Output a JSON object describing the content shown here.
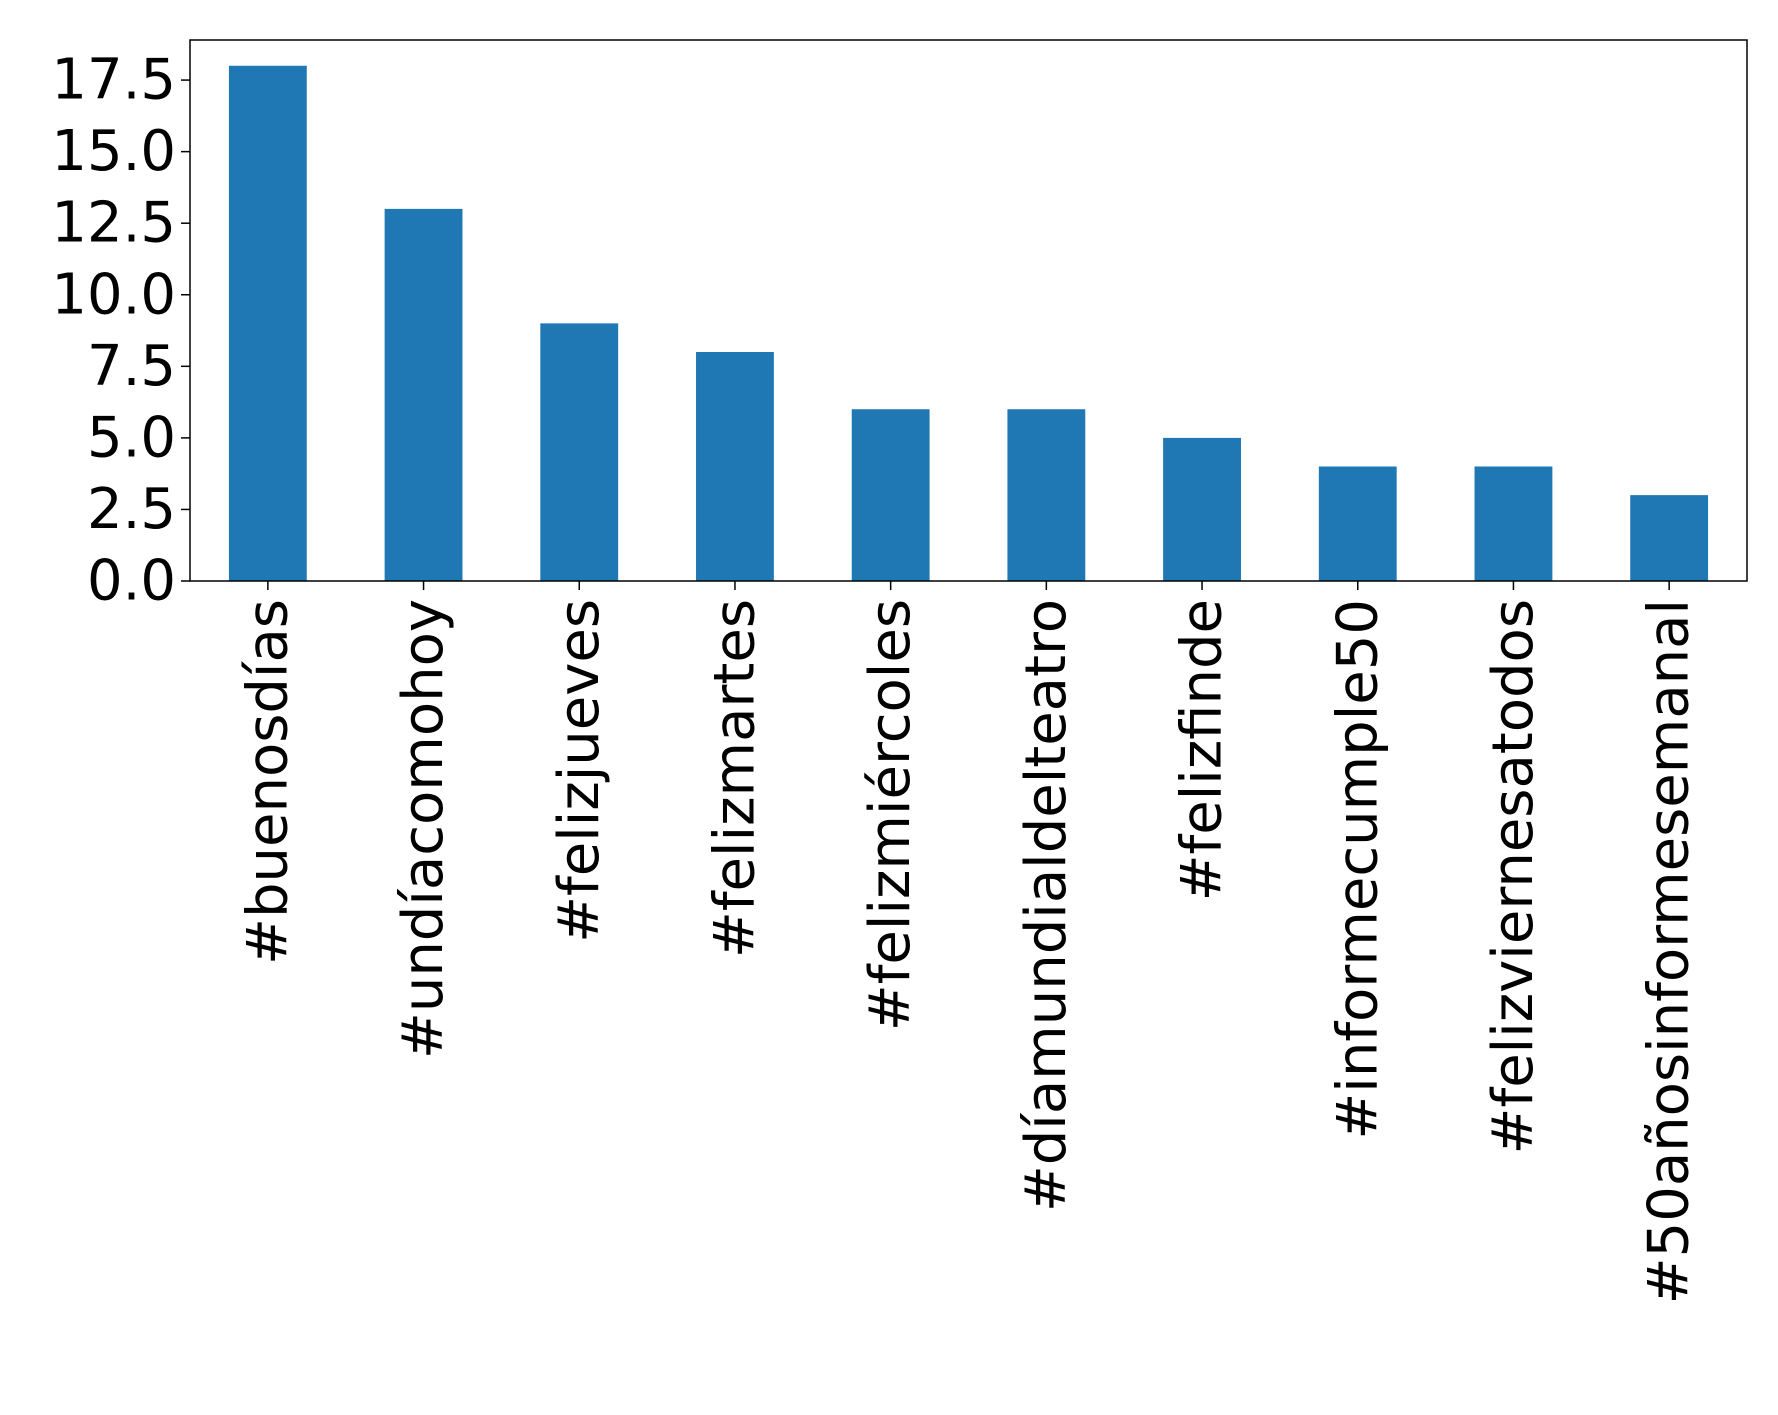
{
  "chart_data": {
    "type": "bar",
    "title": "",
    "xlabel": "",
    "ylabel": "",
    "categories": [
      "#buenosdías",
      "#undíacomohoy",
      "#felizjueves",
      "#felizmartes",
      "#felizmiércoles",
      "#díamundialdelteatro",
      "#felizfinde",
      "#informecumple50",
      "#felizviernesatodos",
      "#50añosinformesemanal"
    ],
    "values": [
      18,
      13,
      9,
      8,
      6,
      6,
      5,
      4,
      4,
      3
    ],
    "ylim": [
      0,
      18.9
    ],
    "yticks": [
      "0.0",
      "2.5",
      "5.0",
      "7.5",
      "10.0",
      "12.5",
      "15.0",
      "17.5"
    ],
    "grid": false,
    "legend": "none",
    "bar_color": "#1f77b4"
  }
}
